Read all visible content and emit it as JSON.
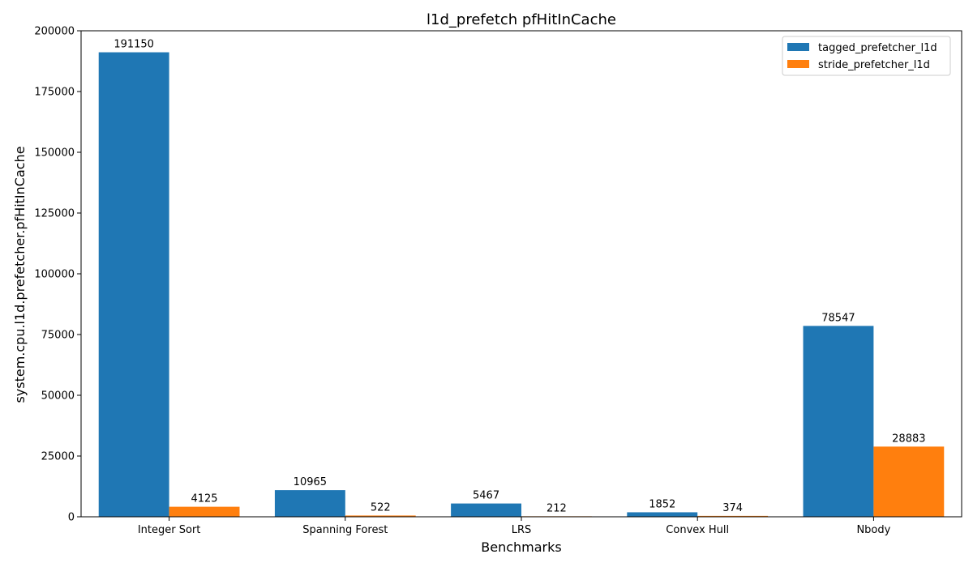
{
  "chart_data": {
    "type": "bar",
    "title": "l1d_prefetch pfHitInCache",
    "xlabel": "Benchmarks",
    "ylabel": "system.cpu.l1d.prefetcher.pfHitInCache",
    "categories": [
      "Integer Sort",
      "Spanning Forest",
      "LRS",
      "Convex Hull",
      "Nbody"
    ],
    "series": [
      {
        "name": "tagged_prefetcher_l1d",
        "color": "#1f77b4",
        "values": [
          191150,
          10965,
          5467,
          1852,
          78547
        ]
      },
      {
        "name": "stride_prefetcher_l1d",
        "color": "#ff7f0e",
        "values": [
          4125,
          522,
          212,
          374,
          28883
        ]
      }
    ],
    "ylim": [
      0,
      200000
    ],
    "yticks": [
      0,
      25000,
      50000,
      75000,
      100000,
      125000,
      150000,
      175000,
      200000
    ],
    "grid": false,
    "legend_position": "top-right",
    "data_labels": true
  }
}
